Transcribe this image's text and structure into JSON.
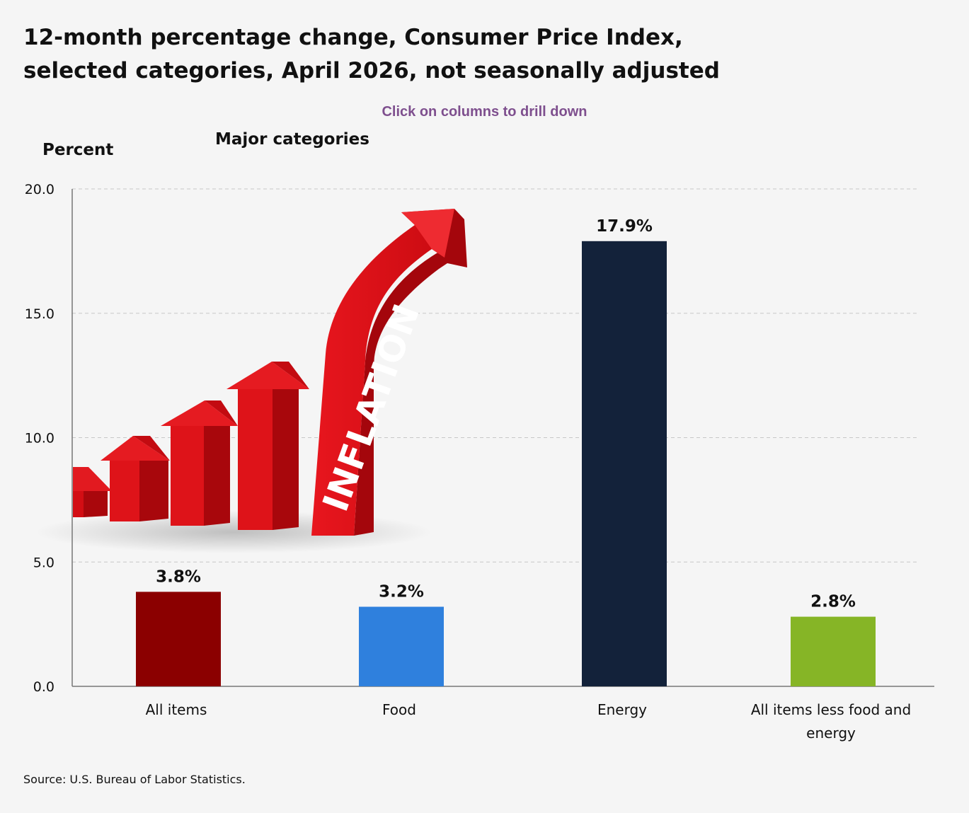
{
  "chart_data": {
    "type": "bar",
    "title_lines": [
      "12-month percentage change, Consumer Price Index,",
      "selected categories, April 2026, not seasonally adjusted"
    ],
    "subtitle": "Major categories",
    "instruction": "Click on columns to drill down",
    "ylabel": "Percent",
    "xlabel": "",
    "ylim": [
      0,
      20
    ],
    "yticks": [
      "0.0",
      "5.0",
      "10.0",
      "15.0",
      "20.0"
    ],
    "grid": true,
    "categories": [
      [
        "All items"
      ],
      [
        "Food"
      ],
      [
        "Energy"
      ],
      [
        "All items less food and",
        "energy"
      ]
    ],
    "values": [
      3.8,
      3.2,
      17.9,
      2.8
    ],
    "data_labels": [
      "3.8%",
      "3.2%",
      "17.9%",
      "2.8%"
    ],
    "colors": [
      "#8b0000",
      "#2f80dd",
      "#13223a",
      "#86b526"
    ],
    "source": "Source: U.S. Bureau of Labor Statistics."
  },
  "illustration": {
    "word": "INFLATION",
    "colors": {
      "red": "#dc0c14",
      "dark_red": "#a4060c",
      "light_red": "#ee2b31"
    }
  }
}
